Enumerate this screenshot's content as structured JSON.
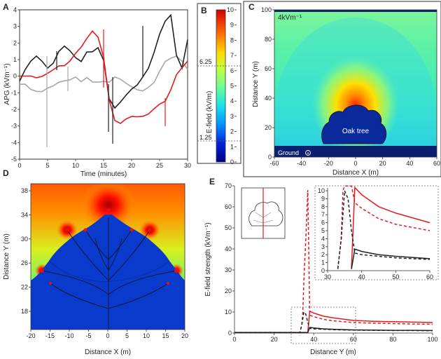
{
  "panel_labels": {
    "a": "A",
    "b": "B",
    "c": "C",
    "d": "D",
    "e": "E"
  },
  "panel_a": {
    "ylabel": "APG (kVm⁻¹)",
    "xlabel": "Time (minutes)"
  },
  "panel_b": {
    "label": "E-field (kV/m)",
    "ticks": [
      "10",
      "9",
      "8",
      "7",
      "6",
      "5",
      "4",
      "3",
      "2",
      "1",
      "0"
    ],
    "marker_upper": "6.25",
    "marker_lower": "1.25"
  },
  "panel_c": {
    "field_label": "4kVm⁻¹",
    "tree_label": "Oak tree",
    "ground_label": "Ground",
    "xlabel": "Distance X (m)",
    "ylabel": "Distance Y (m)",
    "xticks": [
      "-60",
      "-40",
      "-20",
      "0",
      "20",
      "40",
      "60"
    ],
    "yticks": [
      "0",
      "20",
      "40",
      "60",
      "80",
      "100"
    ]
  },
  "panel_d": {
    "xlabel": "Distance X (m)",
    "ylabel": "Distance Y (m)",
    "xticks": [
      "-20",
      "-15",
      "-10",
      "-5",
      "0",
      "5",
      "10",
      "15",
      "20"
    ],
    "yticks": [
      "18",
      "22",
      "26",
      "30",
      "34",
      "38"
    ]
  },
  "panel_e": {
    "xlabel": "Distance Y (m)",
    "ylabel": "E-field strength (kVm⁻¹)",
    "xticks": [
      "0",
      "20",
      "40",
      "60",
      "80",
      "100"
    ],
    "yticks": [
      "0",
      "10",
      "20",
      "30",
      "40",
      "50",
      "60",
      "70"
    ],
    "inset_xticks": [
      "30",
      "40",
      "50",
      "60"
    ],
    "inset_yticks": [
      "0",
      "1",
      "2",
      "3",
      "4",
      "5",
      "6",
      "7",
      "8",
      "9",
      "10"
    ]
  },
  "colors": {
    "black": "#222222",
    "red": "#e41a1c",
    "grey": "#a8a8a8",
    "tree_blue": "#0a2a9c",
    "ground": "#0a1f6e"
  },
  "chart_data": [
    {
      "id": "A",
      "type": "line",
      "xlabel": "Time (minutes)",
      "ylabel": "APG (kVm⁻¹)",
      "xlim": [
        0,
        30
      ],
      "ylim": [
        -5,
        4
      ],
      "xticks": [
        0,
        5,
        10,
        15,
        20,
        25,
        30
      ],
      "yticks": [
        -5,
        -4,
        -3,
        -2,
        -1,
        0,
        1,
        2,
        3,
        4
      ],
      "series": [
        {
          "color": "#222222",
          "x": [
            0,
            1,
            2,
            3,
            4,
            5,
            6,
            7,
            8,
            9,
            10,
            11,
            12,
            13,
            14,
            15,
            16,
            17,
            18,
            19,
            20,
            21,
            22,
            23,
            24,
            25,
            26,
            27,
            28,
            29,
            30
          ],
          "y": [
            -0.3,
            0.3,
            0.8,
            1.2,
            1.0,
            0.6,
            0.8,
            1.4,
            1.7,
            1.5,
            1.2,
            1.0,
            1.5,
            1.4,
            1.6,
            0.9,
            -1.3,
            -1.8,
            -1.5,
            -1.2,
            -0.9,
            -0.6,
            0.0,
            0.6,
            1.5,
            2.5,
            3.2,
            3.6,
            1.3,
            0.6,
            2.3
          ]
        },
        {
          "color": "#e41a1c",
          "x": [
            0,
            1,
            2,
            3,
            4,
            5,
            6,
            7,
            8,
            9,
            10,
            11,
            12,
            13,
            14,
            15,
            16,
            17,
            18,
            19,
            20,
            21,
            22,
            23,
            24,
            25,
            26,
            27,
            28,
            29,
            30
          ],
          "y": [
            -0.1,
            -0.1,
            0.0,
            0.0,
            0.1,
            0.2,
            0.3,
            0.5,
            0.6,
            1.0,
            1.5,
            1.8,
            2.2,
            2.6,
            2.3,
            1.2,
            -1.3,
            -2.6,
            -2.9,
            -2.7,
            -2.5,
            -2.4,
            -2.3,
            -2.2,
            -2.0,
            -1.8,
            -1.6,
            -0.8,
            0.2,
            0.6,
            0.9
          ]
        },
        {
          "color": "#a8a8a8",
          "x": [
            0,
            1,
            2,
            3,
            4,
            5,
            6,
            7,
            8,
            9,
            10,
            11,
            12,
            13,
            14,
            15,
            16,
            17,
            18,
            19,
            20,
            21,
            22,
            23,
            24,
            25,
            26,
            27,
            28,
            29,
            30
          ],
          "y": [
            -0.6,
            -0.5,
            -0.7,
            -0.8,
            -0.9,
            -0.8,
            -0.7,
            -0.4,
            -0.2,
            -0.1,
            0.0,
            -0.4,
            -0.2,
            -0.4,
            -0.3,
            -0.2,
            -0.3,
            -0.1,
            -0.3,
            -0.5,
            -0.6,
            -0.7,
            -0.8,
            -0.7,
            -0.5,
            0.2,
            0.9,
            1.2,
            1.3,
            0.9,
            0.3
          ]
        }
      ]
    },
    {
      "id": "E",
      "type": "line",
      "xlabel": "Distance Y (m)",
      "ylabel": "E-field strength (kVm⁻¹)",
      "xlim": [
        0,
        100
      ],
      "ylim": [
        0,
        70
      ],
      "series": [
        {
          "color": "#e41a1c",
          "style": "solid",
          "x": [
            0,
            37,
            38,
            40,
            45,
            50,
            60,
            70,
            80,
            90,
            100
          ],
          "y": [
            0.3,
            0.3,
            10.4,
            9.5,
            8.0,
            7.2,
            6.0,
            5.6,
            5.4,
            5.2,
            5.0
          ]
        },
        {
          "color": "#e41a1c",
          "style": "dashed",
          "x": [
            0,
            33,
            34,
            34.5,
            35,
            36,
            37,
            38,
            40,
            45,
            50,
            60,
            70,
            80,
            90,
            100
          ],
          "y": [
            0.3,
            0.3,
            4.0,
            10.0,
            25.0,
            45.0,
            68.0,
            8.5,
            7.8,
            6.5,
            5.8,
            5.0,
            4.7,
            4.5,
            4.3,
            4.2
          ]
        },
        {
          "color": "#222222",
          "style": "solid",
          "x": [
            0,
            37,
            38,
            40,
            45,
            50,
            60,
            70,
            80,
            90,
            100
          ],
          "y": [
            0.2,
            0.2,
            2.7,
            2.4,
            2.0,
            1.8,
            1.5,
            1.4,
            1.3,
            1.3,
            1.2
          ]
        },
        {
          "color": "#222222",
          "style": "dashed",
          "x": [
            0,
            33,
            34,
            35,
            36,
            37,
            38,
            40,
            45,
            50,
            60,
            70,
            80,
            90,
            100
          ],
          "y": [
            0.2,
            0.2,
            4.0,
            10.0,
            9.0,
            5.0,
            2.2,
            2.0,
            1.8,
            1.6,
            1.4,
            1.3,
            1.2,
            1.2,
            1.1
          ]
        }
      ],
      "inset": {
        "xlim": [
          30,
          60
        ],
        "ylim": [
          0,
          10
        ]
      }
    }
  ]
}
